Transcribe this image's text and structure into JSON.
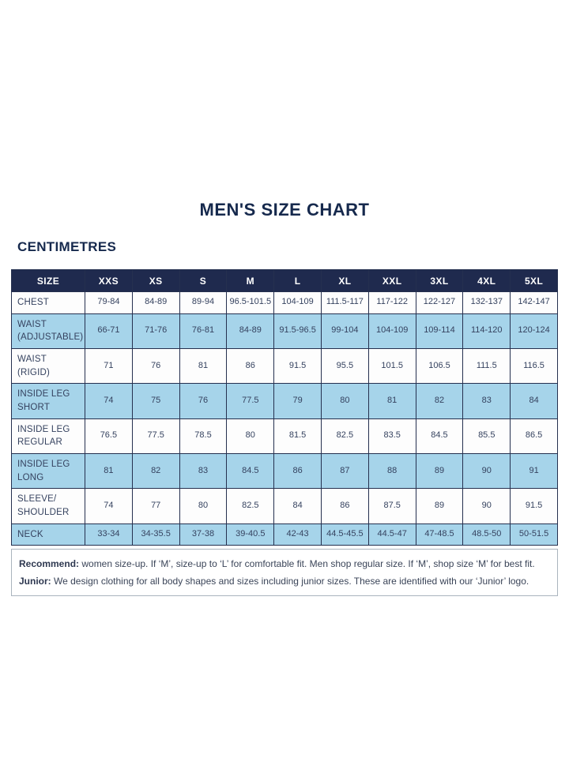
{
  "page": {
    "title": "MEN'S SIZE CHART",
    "units_label": "CENTIMETRES"
  },
  "table": {
    "columns": [
      "SIZE",
      "XXS",
      "XS",
      "S",
      "M",
      "L",
      "XL",
      "XXL",
      "3XL",
      "4XL",
      "5XL"
    ],
    "rows": [
      {
        "label": "CHEST",
        "shade": "white",
        "values": [
          "79-84",
          "84-89",
          "89-94",
          "96.5-101.5",
          "104-109",
          "111.5-117",
          "117-122",
          "122-127",
          "132-137",
          "142-147"
        ]
      },
      {
        "label": "WAIST (ADJUSTABLE)",
        "shade": "blue",
        "values": [
          "66-71",
          "71-76",
          "76-81",
          "84-89",
          "91.5-96.5",
          "99-104",
          "104-109",
          "109-114",
          "114-120",
          "120-124"
        ]
      },
      {
        "label": "WAIST (RIGID)",
        "shade": "white",
        "values": [
          "71",
          "76",
          "81",
          "86",
          "91.5",
          "95.5",
          "101.5",
          "106.5",
          "111.5",
          "116.5"
        ]
      },
      {
        "label": "INSIDE LEG SHORT",
        "shade": "blue",
        "values": [
          "74",
          "75",
          "76",
          "77.5",
          "79",
          "80",
          "81",
          "82",
          "83",
          "84"
        ]
      },
      {
        "label": "INSIDE LEG REGULAR",
        "shade": "white",
        "values": [
          "76.5",
          "77.5",
          "78.5",
          "80",
          "81.5",
          "82.5",
          "83.5",
          "84.5",
          "85.5",
          "86.5"
        ]
      },
      {
        "label": "INSIDE LEG LONG",
        "shade": "blue",
        "values": [
          "81",
          "82",
          "83",
          "84.5",
          "86",
          "87",
          "88",
          "89",
          "90",
          "91"
        ]
      },
      {
        "label": "SLEEVE/ SHOULDER",
        "shade": "white",
        "values": [
          "74",
          "77",
          "80",
          "82.5",
          "84",
          "86",
          "87.5",
          "89",
          "90",
          "91.5"
        ]
      },
      {
        "label": "NECK",
        "shade": "blue",
        "values": [
          "33-34",
          "34-35.5",
          "37-38",
          "39-40.5",
          "42-43",
          "44.5-45.5",
          "44.5-47",
          "47-48.5",
          "48.5-50",
          "50-51.5"
        ]
      }
    ]
  },
  "notes": {
    "recommend_label": "Recommend:",
    "recommend_text": " women size-up. If ‘M’, size-up to ‘L’ for comfortable fit. Men shop regular size. If ‘M’, shop size ‘M’ for best fit.",
    "junior_label": "Junior:",
    "junior_text": " We design clothing for all body shapes and sizes including junior sizes. These are identified with our ‘Junior’ logo."
  },
  "colors": {
    "header_bg": "#1f2a4e",
    "row_blue_bg": "#a6d4ea",
    "row_white_bg": "#fdfdfd",
    "border": "#25304f",
    "text_navy": "#35425f",
    "title_navy": "#16294d",
    "notes_border": "#aab4be"
  }
}
